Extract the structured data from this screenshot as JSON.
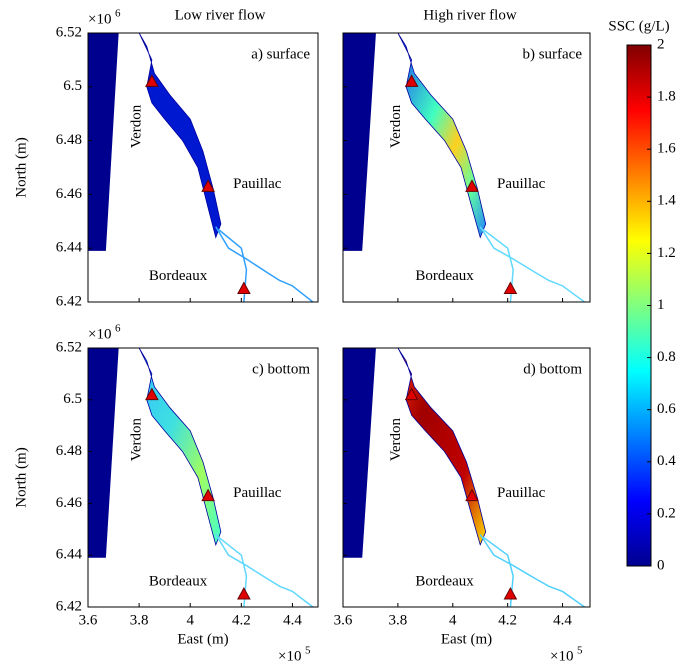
{
  "column_titles": [
    "Low river flow",
    "High river flow"
  ],
  "panels": [
    {
      "label": "a) surface"
    },
    {
      "label": "b) surface"
    },
    {
      "label": "c) bottom"
    },
    {
      "label": "d) bottom"
    }
  ],
  "place_labels": [
    "Verdon",
    "Pauillac",
    "Bordeaux"
  ],
  "x_axis": {
    "label": "East (m)",
    "xlim": [
      3.6,
      4.5
    ],
    "xticks": [
      3.6,
      3.8,
      4,
      4.2,
      4.4
    ],
    "multiplier": "×10",
    "multiplier_exponent": "5"
  },
  "y_axis": {
    "label": "North (m)",
    "ylim": [
      6.42,
      6.52
    ],
    "yticks": [
      6.42,
      6.44,
      6.46,
      6.48,
      6.5,
      6.52
    ],
    "multiplier": "×10",
    "multiplier_exponent": "6"
  },
  "colorbar": {
    "label": "SSC (g/L)",
    "ylim": [
      0,
      2
    ],
    "yticks": [
      0,
      0.2,
      0.4,
      0.6,
      0.8,
      1,
      1.2,
      1.4,
      1.6,
      1.8,
      2
    ]
  }
}
